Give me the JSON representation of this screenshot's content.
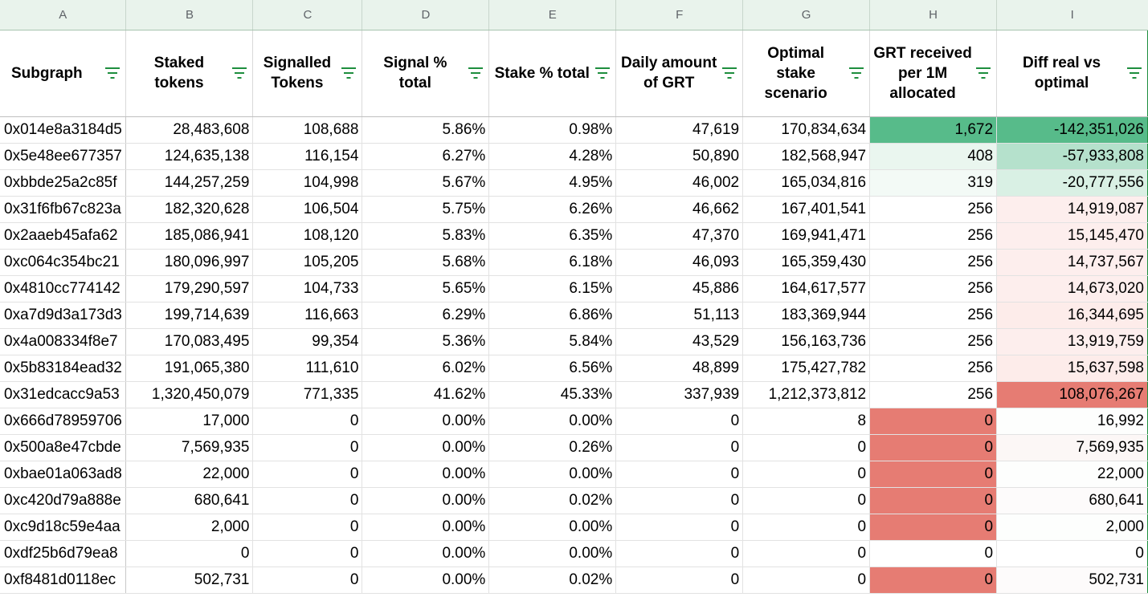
{
  "colors": {
    "column_header_bg": "#e9f3ec",
    "filter_icon": "#1e8e3e",
    "green_strong": "#57bb8a",
    "green_light": "#eaf6ef",
    "red_strong": "#e67c73",
    "red_light": "#fdf1f0"
  },
  "column_letters": [
    "A",
    "B",
    "C",
    "D",
    "E",
    "F",
    "G",
    "H",
    "I"
  ],
  "headers": [
    "Subgraph",
    "Staked tokens",
    "Signalled Tokens",
    "Signal % total",
    "Stake % total",
    "Daily amount of GRT",
    "Optimal stake scenario",
    "GRT received per 1M allocated",
    "Diff real vs optimal"
  ],
  "rows": [
    [
      "0x014e8a3184d5",
      "28,483,608",
      "108,688",
      "5.86%",
      "0.98%",
      "47,619",
      "170,834,634",
      "1,672",
      "-142,351,026"
    ],
    [
      "0x5e48ee677357",
      "124,635,138",
      "116,154",
      "6.27%",
      "4.28%",
      "50,890",
      "182,568,947",
      "408",
      "-57,933,808"
    ],
    [
      "0xbbde25a2c85f",
      "144,257,259",
      "104,998",
      "5.67%",
      "4.95%",
      "46,002",
      "165,034,816",
      "319",
      "-20,777,556"
    ],
    [
      "0x31f6fb67c823a",
      "182,320,628",
      "106,504",
      "5.75%",
      "6.26%",
      "46,662",
      "167,401,541",
      "256",
      "14,919,087"
    ],
    [
      "0x2aaeb45afa62",
      "185,086,941",
      "108,120",
      "5.83%",
      "6.35%",
      "47,370",
      "169,941,471",
      "256",
      "15,145,470"
    ],
    [
      "0xc064c354bc21",
      "180,096,997",
      "105,205",
      "5.68%",
      "6.18%",
      "46,093",
      "165,359,430",
      "256",
      "14,737,567"
    ],
    [
      "0x4810cc774142",
      "179,290,597",
      "104,733",
      "5.65%",
      "6.15%",
      "45,886",
      "164,617,577",
      "256",
      "14,673,020"
    ],
    [
      "0xa7d9d3a173d3",
      "199,714,639",
      "116,663",
      "6.29%",
      "6.86%",
      "51,113",
      "183,369,944",
      "256",
      "16,344,695"
    ],
    [
      "0x4a008334f8e7",
      "170,083,495",
      "99,354",
      "5.36%",
      "5.84%",
      "43,529",
      "156,163,736",
      "256",
      "13,919,759"
    ],
    [
      "0x5b83184ead32",
      "191,065,380",
      "111,610",
      "6.02%",
      "6.56%",
      "48,899",
      "175,427,782",
      "256",
      "15,637,598"
    ],
    [
      "0x31edcacc9a53",
      "1,320,450,079",
      "771,335",
      "41.62%",
      "45.33%",
      "337,939",
      "1,212,373,812",
      "256",
      "108,076,267"
    ],
    [
      "0x666d78959706",
      "17,000",
      "0",
      "0.00%",
      "0.00%",
      "0",
      "8",
      "0",
      "16,992"
    ],
    [
      "0x500a8e47cbde",
      "7,569,935",
      "0",
      "0.00%",
      "0.26%",
      "0",
      "0",
      "0",
      "7,569,935"
    ],
    [
      "0xbae01a063ad8",
      "22,000",
      "0",
      "0.00%",
      "0.00%",
      "0",
      "0",
      "0",
      "22,000"
    ],
    [
      "0xc420d79a888e",
      "680,641",
      "0",
      "0.00%",
      "0.02%",
      "0",
      "0",
      "0",
      "680,641"
    ],
    [
      "0xc9d18c59e4aa",
      "2,000",
      "0",
      "0.00%",
      "0.00%",
      "0",
      "0",
      "0",
      "2,000"
    ],
    [
      "0xdf25b6d79ea8",
      "0",
      "0",
      "0.00%",
      "0.00%",
      "0",
      "0",
      "0",
      "0"
    ],
    [
      "0xf8481d0118ec",
      "502,731",
      "0",
      "0.00%",
      "0.02%",
      "0",
      "0",
      "0",
      "502,731"
    ]
  ],
  "fills_h": [
    "#57bb8a",
    "#eaf6ef",
    "#f3faf6",
    "",
    "",
    "",
    "",
    "",
    "",
    "",
    "",
    "#e67c73",
    "#e67c73",
    "#e67c73",
    "#e67c73",
    "#e67c73",
    "",
    "#e67c73"
  ],
  "fills_i": [
    "#57bb8a",
    "#b5e1cc",
    "#d9f0e4",
    "#fdeeed",
    "#fdeeed",
    "#fdeeed",
    "#fdeeed",
    "#fdecea",
    "#fdeeed",
    "#fdecea",
    "#e67c73",
    "#fdfefd",
    "#fcf7f6",
    "#fdfefd",
    "#fdfbfb",
    "#fdfefd",
    "#ffffff",
    "#fdfbfb"
  ]
}
